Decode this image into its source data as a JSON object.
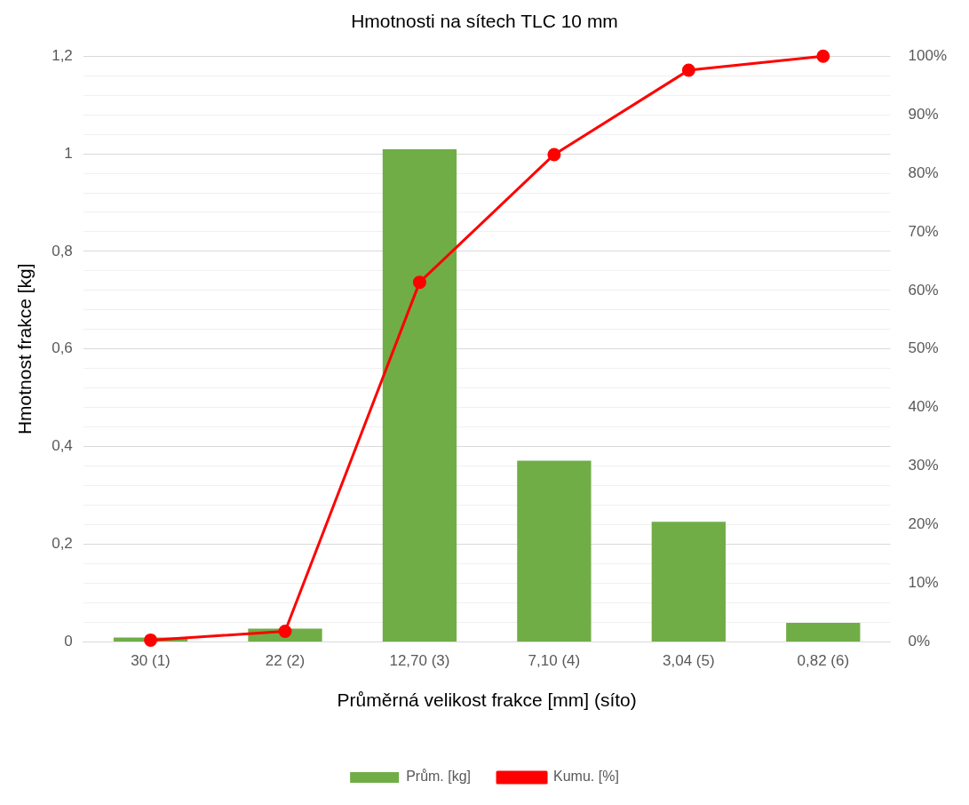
{
  "chart_data": {
    "type": "bar",
    "title": "Hmotnosti na sítech TLC 10 mm",
    "xlabel": "Průměrná velikost frakce [mm] (síto)",
    "ylabel": "Hmotnost frakce [kg]",
    "categories": [
      "30 (1)",
      "22 (2)",
      "12,70 (3)",
      "7,10 (4)",
      "3,04 (5)",
      "0,82 (6)"
    ],
    "series": [
      {
        "name": "Prům. [kg]",
        "color": "#70ad47",
        "values": [
          0.009,
          0.027,
          1.009,
          0.371,
          0.246,
          0.039
        ]
      },
      {
        "name": "Kumu. [%]",
        "type": "line",
        "axis": "y2",
        "color": "#ff0000",
        "marker": "circle",
        "values": [
          0.3,
          1.8,
          61.4,
          83.2,
          97.6,
          100
        ]
      }
    ],
    "ylim": [
      0,
      1.2
    ],
    "yticks": [
      {
        "value": 0,
        "label": "0"
      },
      {
        "value": 0.04,
        "label": null
      },
      {
        "value": 0.08,
        "label": null
      },
      {
        "value": 0.12,
        "label": null
      },
      {
        "value": 0.16,
        "label": null
      },
      {
        "value": 0.2,
        "label": "0,2"
      },
      {
        "value": 0.24,
        "label": null
      },
      {
        "value": 0.28,
        "label": null
      },
      {
        "value": 0.32,
        "label": null
      },
      {
        "value": 0.36,
        "label": null
      },
      {
        "value": 0.4,
        "label": "0,4"
      },
      {
        "value": 0.44,
        "label": null
      },
      {
        "value": 0.48,
        "label": null
      },
      {
        "value": 0.52,
        "label": null
      },
      {
        "value": 0.56,
        "label": null
      },
      {
        "value": 0.6,
        "label": "0,6"
      },
      {
        "value": 0.64,
        "label": null
      },
      {
        "value": 0.68,
        "label": null
      },
      {
        "value": 0.72,
        "label": null
      },
      {
        "value": 0.76,
        "label": null
      },
      {
        "value": 0.8,
        "label": "0,8"
      },
      {
        "value": 0.84,
        "label": null
      },
      {
        "value": 0.88,
        "label": null
      },
      {
        "value": 0.92,
        "label": null
      },
      {
        "value": 0.96,
        "label": null
      },
      {
        "value": 1,
        "label": "1"
      },
      {
        "value": 1.04,
        "label": null
      },
      {
        "value": 1.08,
        "label": null
      },
      {
        "value": 1.12,
        "label": null
      },
      {
        "value": 1.16,
        "label": null
      },
      {
        "value": 1.2,
        "label": "1,2"
      }
    ],
    "y2lim": [
      0,
      100
    ],
    "y2ticks": [
      {
        "value": 0,
        "label": "0%"
      },
      {
        "value": 10,
        "label": "10%"
      },
      {
        "value": 20,
        "label": "20%"
      },
      {
        "value": 30,
        "label": "30%"
      },
      {
        "value": 40,
        "label": "40%"
      },
      {
        "value": 50,
        "label": "50%"
      },
      {
        "value": 60,
        "label": "60%"
      },
      {
        "value": 70,
        "label": "70%"
      },
      {
        "value": 80,
        "label": "80%"
      },
      {
        "value": 90,
        "label": "90%"
      },
      {
        "value": 100,
        "label": "100%"
      }
    ],
    "grid": "y",
    "legend": "bottom"
  }
}
